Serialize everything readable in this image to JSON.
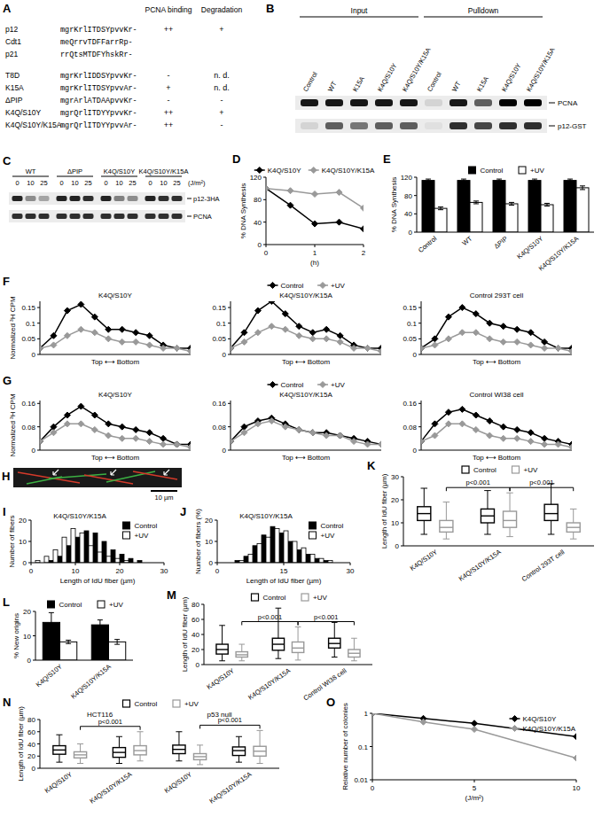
{
  "panels": {
    "A": {
      "label": "A",
      "header": [
        "PCNA binding",
        "Degradation"
      ],
      "wild_type": [
        {
          "name": "p12",
          "sequence": "mgrKrlITDSYpvvKr-",
          "pcna_binding": "++",
          "degradation": "+"
        },
        {
          "name": "Cdt1",
          "sequence": "meQrrvTDFFarrRp-"
        },
        {
          "name": "p21",
          "sequence": "rrQtsMTDFYhskRr-"
        }
      ],
      "mutants": [
        {
          "name": "T8D",
          "sequence": "mgrKrlIDDSYpvvKr-",
          "pcna_binding": "-",
          "degradation": "n. d."
        },
        {
          "name": "K15A",
          "sequence": "mgrKrlITDSYpvvAr-",
          "pcna_binding": "+",
          "degradation": "n. d."
        },
        {
          "name": "ΔPIP",
          "sequence": "mgrArlATDAApvvKr-",
          "pcna_binding": "-",
          "degradation": "-"
        },
        {
          "name": "K4Q/S10Y",
          "sequence": "mgrQrlITDYYpvvKr-",
          "pcna_binding": "++",
          "degradation": "+"
        },
        {
          "name": "K4Q/S10Y/K15A",
          "sequence": "mgrQrlITDYYpvvAr-",
          "pcna_binding": "++",
          "degradation": "-"
        }
      ]
    },
    "B": {
      "label": "B",
      "groups": [
        "Input",
        "Pulldown"
      ],
      "lanes": [
        "Control",
        "WT",
        "K15A",
        "K4Q/S10Y",
        "K4Q/S10Y/K15A"
      ],
      "rows": [
        "PCNA",
        "p12-GST"
      ],
      "bands": [
        [
          0.9,
          0.9,
          0.9,
          0.9,
          0.9,
          0.1,
          0.9,
          0.6,
          1,
          1
        ],
        [
          0.1,
          0.6,
          0.5,
          0.6,
          0.6,
          0.05,
          0.8,
          0.7,
          0.8,
          0.8
        ]
      ]
    },
    "C": {
      "label": "C",
      "groups": [
        "WT",
        "ΔPIP",
        "K4Q/S10Y",
        "K4Q/S10Y/K15A"
      ],
      "doses": [
        0,
        10,
        25
      ],
      "unit": "(J/m²)",
      "rows": [
        "p12-3HA",
        "PCNA"
      ],
      "bands": [
        [
          0.85,
          0.4,
          0.3,
          0.85,
          0.85,
          0.8,
          0.85,
          0.45,
          0.4,
          0.85,
          0.8,
          0.8
        ],
        [
          0.8,
          0.8,
          0.8,
          0.8,
          0.8,
          0.8,
          0.8,
          0.8,
          0.8,
          0.8,
          0.8,
          0.8
        ]
      ]
    },
    "H": {
      "label": "H",
      "scale_bar": "10 µm"
    }
  },
  "chart_data": [
    {
      "panel": "D",
      "type": "line",
      "ylabel": "% DNA Synthesis",
      "xlabel": "(h)",
      "x": [
        0,
        0.5,
        1,
        1.5,
        2
      ],
      "xlim": [
        0,
        2
      ],
      "xticks": [
        0,
        1,
        2
      ],
      "ylim": [
        0,
        120
      ],
      "yticks": [
        0,
        40,
        80,
        120
      ],
      "legend": "top",
      "series": [
        {
          "name": "K4Q/S10Y",
          "color": "#000000",
          "marker": "diamond",
          "values": [
            100,
            70,
            37,
            40,
            28
          ]
        },
        {
          "name": "K4Q/S10Y/K15A",
          "color": "#999999",
          "marker": "diamond",
          "values": [
            100,
            96,
            90,
            93,
            65
          ]
        }
      ]
    },
    {
      "panel": "E",
      "type": "bar",
      "ylabel": "% DNA Synthesis",
      "categories": [
        "Control",
        "WT",
        "ΔPIP",
        "K4Q/S10Y",
        "K4Q/S10Y/K15A"
      ],
      "ylim": [
        0,
        120
      ],
      "yticks": [
        0,
        40,
        80,
        120
      ],
      "legend": "top",
      "series": [
        {
          "name": "Control",
          "color": "#000000",
          "values": [
            113,
            113,
            113,
            113,
            113
          ],
          "errors": [
            3,
            3,
            3,
            3,
            3
          ]
        },
        {
          "name": "+UV",
          "color": "#ffffff",
          "values": [
            52,
            65,
            62,
            60,
            97
          ],
          "errors": [
            3,
            3,
            3,
            3,
            4
          ]
        }
      ]
    },
    {
      "panel": "F",
      "type": "line",
      "ylabel": "Normalized ³H CPM",
      "xlabel": "Top ⟷ Bottom",
      "x": [
        1,
        2,
        3,
        4,
        5,
        6,
        7,
        8,
        9,
        10,
        11,
        12
      ],
      "xlim": [
        1,
        12
      ],
      "tick_labels": "y",
      "ylim": [
        0,
        0.17
      ],
      "yticks": [
        0,
        0.05,
        0.1,
        0.15
      ],
      "legend": "top",
      "series": [
        {
          "name": "Control",
          "color": "#000000",
          "marker": "diamond"
        },
        {
          "name": "+UV",
          "color": "#999999",
          "marker": "diamond"
        }
      ],
      "subplots": [
        {
          "title": "K4Q/S10Y",
          "values": [
            [
              0.02,
              0.06,
              0.14,
              0.16,
              0.12,
              0.08,
              0.08,
              0.07,
              0.06,
              0.03,
              0.02,
              0.02
            ],
            [
              0.02,
              0.03,
              0.06,
              0.08,
              0.07,
              0.05,
              0.04,
              0.04,
              0.03,
              0.02,
              0.02,
              0.01
            ]
          ]
        },
        {
          "title": "K4Q/S10Y/K15A",
          "values": [
            [
              0.02,
              0.07,
              0.14,
              0.17,
              0.13,
              0.09,
              0.07,
              0.08,
              0.06,
              0.03,
              0.02,
              0.02
            ],
            [
              0.02,
              0.04,
              0.07,
              0.09,
              0.08,
              0.06,
              0.05,
              0.05,
              0.04,
              0.02,
              0.02,
              0.01
            ]
          ]
        },
        {
          "title": "Control 293T cell",
          "values": [
            [
              0.02,
              0.05,
              0.12,
              0.15,
              0.13,
              0.1,
              0.09,
              0.08,
              0.07,
              0.04,
              0.02,
              0.02
            ],
            [
              0.02,
              0.03,
              0.05,
              0.07,
              0.07,
              0.05,
              0.04,
              0.04,
              0.03,
              0.02,
              0.02,
              0.01
            ]
          ]
        }
      ]
    },
    {
      "panel": "G",
      "type": "line",
      "ylabel": "Normalized ³H CPM",
      "xlabel": "Top ⟷ Bottom",
      "x": [
        1,
        2,
        3,
        4,
        5,
        6,
        7,
        8,
        9,
        10,
        11,
        12
      ],
      "xlim": [
        1,
        12
      ],
      "tick_labels": "y",
      "ylim": [
        0,
        0.17
      ],
      "yticks": [
        0,
        0.08,
        0.16
      ],
      "legend": "top",
      "series": [
        {
          "name": "Control",
          "color": "#000000",
          "marker": "diamond"
        },
        {
          "name": "+UV",
          "color": "#999999",
          "marker": "diamond"
        }
      ],
      "subplots": [
        {
          "title": "K4Q/S10Y",
          "values": [
            [
              0.03,
              0.08,
              0.12,
              0.15,
              0.12,
              0.09,
              0.08,
              0.07,
              0.06,
              0.04,
              0.02,
              0.02
            ],
            [
              0.03,
              0.06,
              0.09,
              0.09,
              0.07,
              0.05,
              0.04,
              0.04,
              0.03,
              0.02,
              0.02,
              0.01
            ]
          ]
        },
        {
          "title": "K4Q/S10Y/K15A",
          "values": [
            [
              0.03,
              0.08,
              0.1,
              0.11,
              0.09,
              0.07,
              0.06,
              0.06,
              0.05,
              0.04,
              0.03,
              0.02
            ],
            [
              0.03,
              0.06,
              0.09,
              0.1,
              0.08,
              0.07,
              0.06,
              0.05,
              0.05,
              0.03,
              0.02,
              0.02
            ]
          ]
        },
        {
          "title": "Control WI38 cell",
          "values": [
            [
              0.03,
              0.09,
              0.13,
              0.14,
              0.12,
              0.1,
              0.08,
              0.07,
              0.06,
              0.04,
              0.03,
              0.02
            ],
            [
              0.03,
              0.05,
              0.09,
              0.09,
              0.07,
              0.05,
              0.04,
              0.04,
              0.03,
              0.02,
              0.02,
              0.01
            ]
          ]
        }
      ]
    },
    {
      "panel": "I",
      "type": "histogram",
      "title": "K4Q/S10Y/K15A",
      "ylabel": "Number of fibers",
      "xlabel": "Length of IdU fiber (µm)",
      "bins": [
        0,
        2,
        4,
        6,
        8,
        10,
        12,
        14,
        16,
        18,
        20,
        22,
        24,
        26,
        28,
        30
      ],
      "xlim": [
        0,
        30
      ],
      "xticks": [
        0,
        10,
        20,
        30
      ],
      "ylim": [
        0,
        20
      ],
      "yticks": [
        0,
        10,
        20
      ],
      "legend": "top-right",
      "series": [
        {
          "name": "Control",
          "color": "#000000",
          "values": [
            0,
            0,
            1,
            3,
            8,
            12,
            15,
            14,
            10,
            6,
            4,
            2,
            1,
            0,
            0
          ]
        },
        {
          "name": "+UV",
          "color": "#ffffff",
          "values": [
            1,
            3,
            6,
            12,
            16,
            14,
            8,
            5,
            3,
            2,
            1,
            0,
            0,
            0,
            0
          ]
        }
      ]
    },
    {
      "panel": "J",
      "type": "histogram",
      "title": "K4Q/S10Y/K15A",
      "ylabel": "Number of fibers (%)",
      "xlabel": "Length of IdU fiber (µm)",
      "bins": [
        0,
        2,
        4,
        6,
        8,
        10,
        12,
        14,
        16,
        18,
        20,
        22,
        24,
        26,
        28,
        30
      ],
      "xlim": [
        0,
        30
      ],
      "xticks": [
        0,
        15,
        30
      ],
      "ylim": [
        0,
        20
      ],
      "yticks": [
        0,
        10,
        20
      ],
      "legend": "top-right",
      "series": [
        {
          "name": "Control",
          "color": "#000000",
          "values": [
            0,
            0,
            1,
            3,
            8,
            13,
            17,
            14,
            10,
            6,
            4,
            2,
            1,
            0,
            0
          ]
        },
        {
          "name": "+UV",
          "color": "#ffffff",
          "values": [
            0,
            0,
            1,
            4,
            9,
            12,
            16,
            15,
            10,
            7,
            4,
            2,
            1,
            0,
            0
          ]
        }
      ]
    },
    {
      "panel": "K",
      "type": "box",
      "ylabel": "Length of IdU fiber (µm)",
      "categories": [
        "K4Q/S10Y",
        "K4Q/S10Y/K15A",
        "Control 293T cell"
      ],
      "ylim": [
        0,
        30
      ],
      "yticks": [
        0,
        10,
        20,
        30
      ],
      "legend": "top",
      "series": [
        {
          "name": "Control",
          "color": "#000000",
          "boxes": [
            [
              5,
              11,
              14,
              17,
              25
            ],
            [
              5,
              10,
              13,
              16,
              24
            ],
            [
              5,
              11,
              14,
              18,
              27
            ]
          ]
        },
        {
          "name": "+UV",
          "color": "#999999",
          "boxes": [
            [
              3,
              6,
              8,
              11,
              19
            ],
            [
              4,
              8,
              11,
              15,
              23
            ],
            [
              3,
              6,
              8,
              10,
              16
            ]
          ]
        }
      ],
      "annotations": [
        {
          "text": "p<0.001",
          "between": [
            0,
            1
          ]
        },
        {
          "text": "p<0.001",
          "between": [
            1,
            2
          ]
        }
      ]
    },
    {
      "panel": "L",
      "type": "bar",
      "ylabel": "% New origins",
      "categories": [
        "K4Q/S10Y",
        "K4Q/S10Y/K15A"
      ],
      "ylim": [
        0,
        20
      ],
      "yticks": [
        0,
        10,
        20
      ],
      "legend": "top",
      "series": [
        {
          "name": "Control",
          "color": "#000000",
          "values": [
            15.5,
            14.5
          ],
          "errors": [
            4,
            2
          ]
        },
        {
          "name": "+UV",
          "color": "#ffffff",
          "values": [
            7.5,
            7.5
          ],
          "errors": [
            0.7,
            1
          ]
        }
      ]
    },
    {
      "panel": "M",
      "type": "box",
      "ylabel": "Length of IdU fiber (µm)",
      "categories": [
        "K4Q/S10Y",
        "K4Q/S10Y/K15A",
        "Control WI38 cell"
      ],
      "ylim": [
        0,
        80
      ],
      "yticks": [
        0,
        20,
        40,
        60,
        80
      ],
      "legend": "top",
      "series": [
        {
          "name": "Control",
          "color": "#000000",
          "boxes": [
            [
              5,
              14,
              20,
              27,
              52
            ],
            [
              8,
              19,
              27,
              35,
              75
            ],
            [
              10,
              22,
              28,
              35,
              56
            ]
          ]
        },
        {
          "name": "+UV",
          "color": "#999999",
          "boxes": [
            [
              5,
              10,
              13,
              17,
              27
            ],
            [
              6,
              16,
              22,
              30,
              50
            ],
            [
              5,
              10,
              15,
              20,
              35
            ]
          ]
        }
      ],
      "annotations": [
        {
          "text": "p<0.001",
          "between": [
            0,
            1
          ]
        },
        {
          "text": "p<0.001",
          "between": [
            1,
            2
          ]
        }
      ]
    },
    {
      "panel": "N",
      "type": "box",
      "ylabel": "Length of IdU fiber (µm)",
      "categories": [
        "K4Q/S10Y",
        "K4Q/S10Y/K15A",
        "K4Q/S10Y",
        "K4Q/S10Y/K15A"
      ],
      "groups": [
        {
          "label": "HCT116",
          "size": 2
        },
        {
          "label": "p53 null",
          "size": 2
        }
      ],
      "ylim": [
        0,
        80
      ],
      "yticks": [
        0,
        20,
        40,
        60,
        80
      ],
      "legend": "top",
      "series": [
        {
          "name": "Control",
          "color": "#000000",
          "boxes": [
            [
              10,
              23,
              30,
              37,
              55
            ],
            [
              8,
              18,
              26,
              34,
              52
            ],
            [
              12,
              24,
              31,
              38,
              60
            ],
            [
              10,
              21,
              29,
              35,
              52
            ]
          ]
        },
        {
          "name": "+UV",
          "color": "#999999",
          "boxes": [
            [
              8,
              17,
              22,
              27,
              40
            ],
            [
              12,
              22,
              29,
              37,
              60
            ],
            [
              6,
              14,
              19,
              24,
              38
            ],
            [
              8,
              20,
              28,
              36,
              62
            ]
          ]
        }
      ],
      "annotations": [
        {
          "text": "p<0.001",
          "between": [
            0,
            1
          ]
        },
        {
          "text": "p<0.001",
          "between": [
            2,
            3
          ]
        }
      ]
    },
    {
      "panel": "O",
      "type": "line",
      "ylabel": "Relative number of colonies",
      "xlabel": "(J/m²)",
      "log": "y",
      "x": [
        0,
        2.5,
        5,
        10
      ],
      "xlim": [
        0,
        10
      ],
      "xticks": [
        0,
        5,
        10
      ],
      "ylim": [
        0.01,
        1
      ],
      "yticks": [
        0.01,
        0.1,
        1
      ],
      "legend": "top-right",
      "series": [
        {
          "name": "K4Q/S10Y",
          "color": "#000000",
          "marker": "diamond",
          "values": [
            1,
            0.7,
            0.5,
            0.2
          ]
        },
        {
          "name": "K4Q/S10Y/K15A",
          "color": "#999999",
          "marker": "diamond",
          "values": [
            1,
            0.55,
            0.33,
            0.045
          ]
        }
      ]
    }
  ]
}
